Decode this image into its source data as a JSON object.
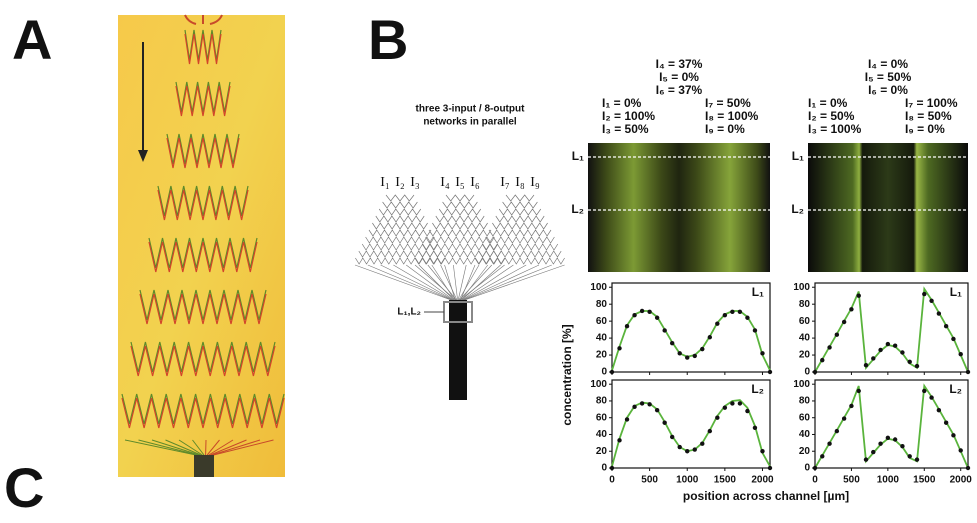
{
  "panels": {
    "a": "A",
    "b": "B",
    "c": "C"
  },
  "schematic": {
    "title_lines": [
      "three 3-input / 8-output",
      "networks in parallel"
    ],
    "inputs": [
      "I₁",
      "I₂",
      "I₃",
      "I₄",
      "I₅",
      "I₆",
      "I₇",
      "I₈",
      "I₉"
    ],
    "section": "L₁,L₂"
  },
  "conditions": [
    {
      "top": [
        "I₄ = 37%",
        "I₅ = 0%",
        "I₆ = 37%"
      ],
      "left": [
        "I₁ = 0%",
        "I₂ = 100%",
        "I₃ = 50%"
      ],
      "right": [
        "I₇ = 50%",
        "I₈ = 100%",
        "I₉ = 0%"
      ]
    },
    {
      "top": [
        "I₄ = 0%",
        "I₅ = 50%",
        "I₆ = 0%"
      ],
      "left": [
        "I₁ = 0%",
        "I₂ = 50%",
        "I₃ = 100%"
      ],
      "right": [
        "I₇ = 100%",
        "I₈ = 50%",
        "I₉ = 0%"
      ]
    }
  ],
  "heatmaps": [
    {
      "lines": [
        "L₁",
        "L₂"
      ]
    },
    {
      "lines": [
        "L₁",
        "L₂"
      ]
    }
  ],
  "shared_axes": {
    "xlabel": "position across channel [µm]",
    "ylabel": "concentration [%]"
  },
  "chart_data": [
    {
      "type": "line",
      "label": "L₁",
      "show_xtick_labels": false,
      "x": [
        0,
        100,
        200,
        300,
        400,
        500,
        600,
        700,
        800,
        900,
        1000,
        1100,
        1200,
        1300,
        1400,
        1500,
        1600,
        1700,
        1800,
        1900,
        2000,
        2100
      ],
      "series": [
        {
          "color": "#5ab43c",
          "style": "line",
          "values": [
            2,
            30,
            55,
            68,
            72,
            72,
            65,
            50,
            35,
            22,
            18,
            20,
            28,
            42,
            58,
            68,
            72,
            72,
            65,
            50,
            20,
            2
          ]
        },
        {
          "color": "#111111",
          "style": "dots",
          "values": [
            0,
            28,
            54,
            67,
            72,
            71,
            64,
            49,
            34,
            22,
            17,
            19,
            27,
            41,
            57,
            67,
            71,
            71,
            64,
            49,
            22,
            0
          ]
        }
      ],
      "xlim": [
        0,
        2100
      ],
      "ylim": [
        0,
        105
      ],
      "xticks": [
        0,
        500,
        1000,
        1500,
        2000
      ],
      "yticks": [
        0,
        20,
        40,
        60,
        80,
        100
      ]
    },
    {
      "type": "line",
      "label": "L₂",
      "show_xtick_labels": true,
      "x": [
        0,
        100,
        200,
        300,
        400,
        500,
        600,
        700,
        800,
        900,
        1000,
        1100,
        1200,
        1300,
        1400,
        1500,
        1600,
        1700,
        1800,
        1900,
        2000,
        2100
      ],
      "series": [
        {
          "color": "#5ab43c",
          "style": "line",
          "values": [
            2,
            35,
            60,
            74,
            78,
            77,
            70,
            55,
            38,
            25,
            20,
            22,
            30,
            45,
            62,
            74,
            80,
            81,
            72,
            50,
            18,
            2
          ]
        },
        {
          "color": "#111111",
          "style": "dots",
          "values": [
            0,
            33,
            58,
            73,
            77,
            76,
            69,
            54,
            37,
            25,
            20,
            22,
            29,
            44,
            60,
            72,
            77,
            77,
            68,
            48,
            20,
            0
          ]
        }
      ],
      "xlim": [
        0,
        2100
      ],
      "ylim": [
        0,
        105
      ],
      "xticks": [
        0,
        500,
        1000,
        1500,
        2000
      ],
      "yticks": [
        0,
        20,
        40,
        60,
        80,
        100
      ]
    },
    {
      "type": "line",
      "label": "L₁",
      "show_xtick_labels": false,
      "x": [
        0,
        100,
        200,
        300,
        400,
        500,
        600,
        700,
        800,
        900,
        1000,
        1100,
        1200,
        1300,
        1400,
        1500,
        1600,
        1700,
        1800,
        1900,
        2000,
        2100
      ],
      "series": [
        {
          "color": "#5ab43c",
          "style": "line",
          "values": [
            0,
            15,
            30,
            45,
            60,
            75,
            95,
            5,
            15,
            25,
            32,
            30,
            22,
            10,
            5,
            98,
            85,
            70,
            55,
            40,
            20,
            0
          ]
        },
        {
          "color": "#111111",
          "style": "dots",
          "values": [
            0,
            14,
            29,
            44,
            59,
            74,
            90,
            8,
            16,
            26,
            33,
            31,
            23,
            12,
            7,
            92,
            84,
            69,
            54,
            39,
            21,
            0
          ]
        }
      ],
      "xlim": [
        0,
        2100
      ],
      "ylim": [
        0,
        105
      ],
      "xticks": [
        0,
        500,
        1000,
        1500,
        2000
      ],
      "yticks": [
        0,
        20,
        40,
        60,
        80,
        100
      ]
    },
    {
      "type": "line",
      "label": "L₂",
      "show_xtick_labels": true,
      "x": [
        0,
        100,
        200,
        300,
        400,
        500,
        600,
        700,
        800,
        900,
        1000,
        1100,
        1200,
        1300,
        1400,
        1500,
        1600,
        1700,
        1800,
        1900,
        2000,
        2100
      ],
      "series": [
        {
          "color": "#5ab43c",
          "style": "line",
          "values": [
            0,
            15,
            30,
            45,
            60,
            75,
            98,
            8,
            18,
            28,
            35,
            33,
            25,
            12,
            8,
            98,
            85,
            70,
            55,
            40,
            20,
            0
          ]
        },
        {
          "color": "#111111",
          "style": "dots",
          "values": [
            0,
            14,
            29,
            44,
            59,
            74,
            92,
            10,
            19,
            29,
            36,
            34,
            26,
            14,
            10,
            92,
            84,
            69,
            54,
            39,
            21,
            0
          ]
        }
      ],
      "xlim": [
        0,
        2100
      ],
      "ylim": [
        0,
        105
      ],
      "xticks": [
        0,
        500,
        1000,
        1500,
        2000
      ],
      "yticks": [
        0,
        20,
        40,
        60,
        80,
        100
      ]
    }
  ]
}
